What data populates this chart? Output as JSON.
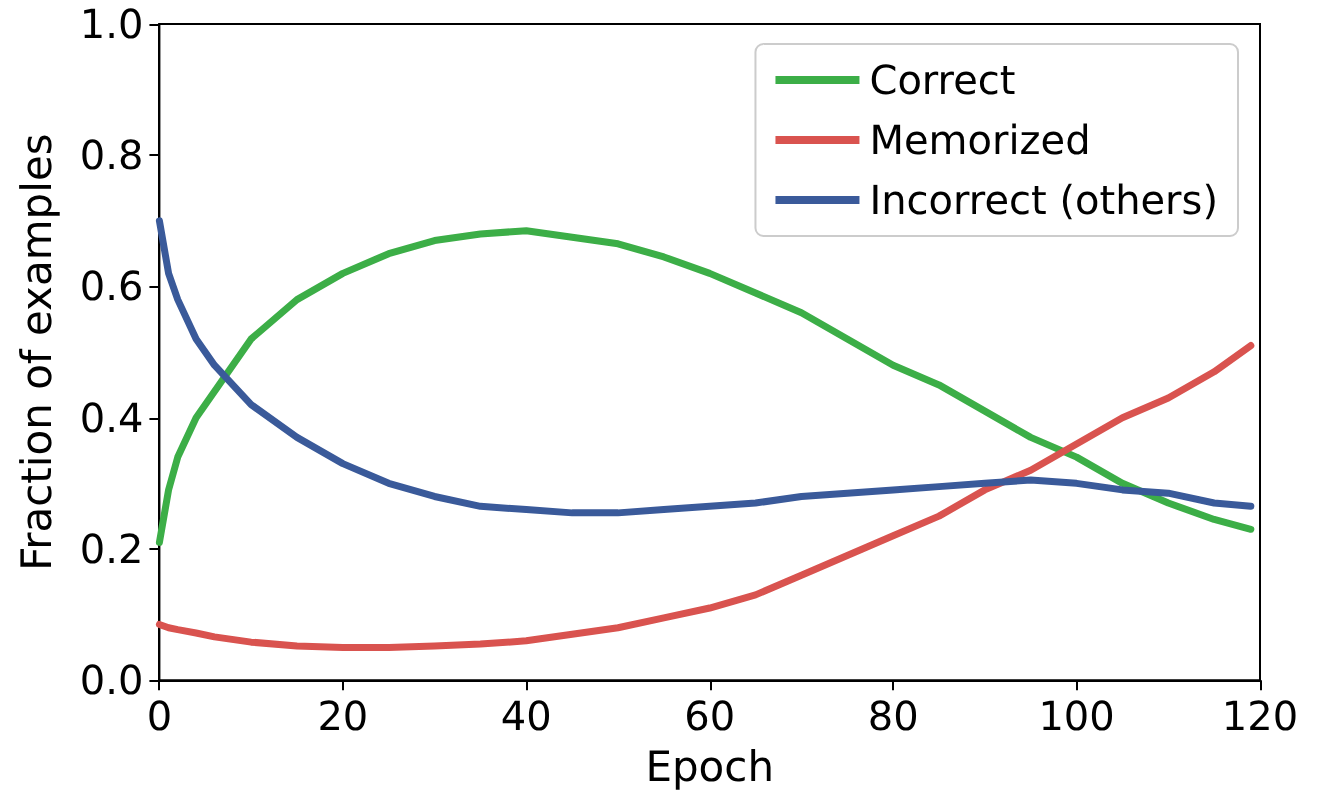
{
  "chart_data": {
    "type": "line",
    "xlabel": "Epoch",
    "ylabel": "Fraction of examples",
    "xlim": [
      0,
      120
    ],
    "ylim": [
      0,
      1
    ],
    "xticks": [
      0,
      20,
      40,
      60,
      80,
      100,
      120
    ],
    "yticks": [
      {
        "value": 0,
        "label": "0.0"
      },
      {
        "value": 0.2,
        "label": "0.2"
      },
      {
        "value": 0.4,
        "label": "0.4"
      },
      {
        "value": 0.6,
        "label": "0.6"
      },
      {
        "value": 0.8,
        "label": "0.8"
      },
      {
        "value": 1,
        "label": "1.0"
      }
    ],
    "x": [
      0,
      1,
      2,
      4,
      6,
      10,
      15,
      20,
      25,
      30,
      35,
      40,
      45,
      50,
      55,
      60,
      65,
      70,
      75,
      80,
      85,
      90,
      95,
      100,
      105,
      110,
      115,
      119
    ],
    "series": [
      {
        "name": "Correct",
        "color": "#3cae47",
        "values": [
          0.21,
          0.29,
          0.34,
          0.4,
          0.44,
          0.52,
          0.58,
          0.62,
          0.65,
          0.67,
          0.68,
          0.685,
          0.675,
          0.665,
          0.645,
          0.62,
          0.59,
          0.56,
          0.52,
          0.48,
          0.45,
          0.41,
          0.37,
          0.34,
          0.3,
          0.27,
          0.245,
          0.23
        ]
      },
      {
        "name": "Memorized",
        "color": "#d9534f",
        "values": [
          0.085,
          0.08,
          0.077,
          0.072,
          0.066,
          0.058,
          0.052,
          0.05,
          0.05,
          0.052,
          0.055,
          0.06,
          0.07,
          0.08,
          0.095,
          0.11,
          0.13,
          0.16,
          0.19,
          0.22,
          0.25,
          0.29,
          0.32,
          0.36,
          0.4,
          0.43,
          0.47,
          0.51
        ]
      },
      {
        "name": "Incorrect (others)",
        "color": "#3a5a9a",
        "values": [
          0.7,
          0.62,
          0.58,
          0.52,
          0.48,
          0.42,
          0.37,
          0.33,
          0.3,
          0.28,
          0.265,
          0.26,
          0.255,
          0.255,
          0.26,
          0.265,
          0.27,
          0.28,
          0.285,
          0.29,
          0.295,
          0.3,
          0.305,
          0.3,
          0.29,
          0.285,
          0.27,
          0.265
        ]
      }
    ],
    "legend": "top right",
    "grid": false,
    "marker": "none",
    "line_style": "solid"
  }
}
